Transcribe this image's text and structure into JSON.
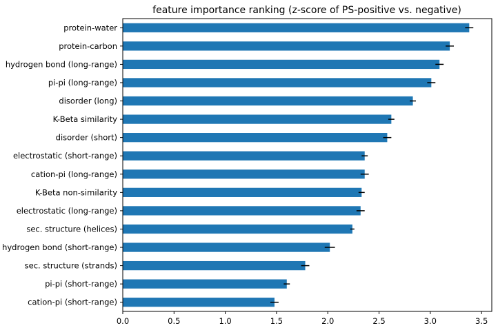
{
  "chart_data": {
    "type": "bar",
    "orientation": "horizontal",
    "title": "feature importance ranking (z-score of PS-positive vs. negative)",
    "xlabel": "",
    "ylabel": "",
    "xlim": [
      0,
      3.6
    ],
    "xticks": [
      0.0,
      0.5,
      1.0,
      1.5,
      2.0,
      2.5,
      3.0,
      3.5
    ],
    "xtick_labels": [
      "0.0",
      "0.5",
      "1.0",
      "1.5",
      "2.0",
      "2.5",
      "3.0",
      "3.5"
    ],
    "grid": false,
    "bar_color": "#1f77b4",
    "error_color": "#000000",
    "categories": [
      "protein-water",
      "protein-carbon",
      "hydrogen bond (long-range)",
      "pi-pi (long-range)",
      "disorder (long)",
      "K-Beta similarity",
      "disorder (short)",
      "electrostatic (short-range)",
      "cation-pi (long-range)",
      "K-Beta non-similarity",
      "electrostatic (long-range)",
      "sec. structure (helices)",
      "hydrogen bond (short-range)",
      "sec. structure (strands)",
      "pi-pi (short-range)",
      "cation-pi (short-range)"
    ],
    "values": [
      3.38,
      3.19,
      3.09,
      3.01,
      2.83,
      2.62,
      2.58,
      2.36,
      2.36,
      2.33,
      2.32,
      2.24,
      2.02,
      1.78,
      1.6,
      1.48
    ],
    "errors": [
      0.04,
      0.04,
      0.04,
      0.04,
      0.03,
      0.03,
      0.04,
      0.03,
      0.04,
      0.03,
      0.04,
      0.02,
      0.05,
      0.04,
      0.03,
      0.04
    ]
  }
}
